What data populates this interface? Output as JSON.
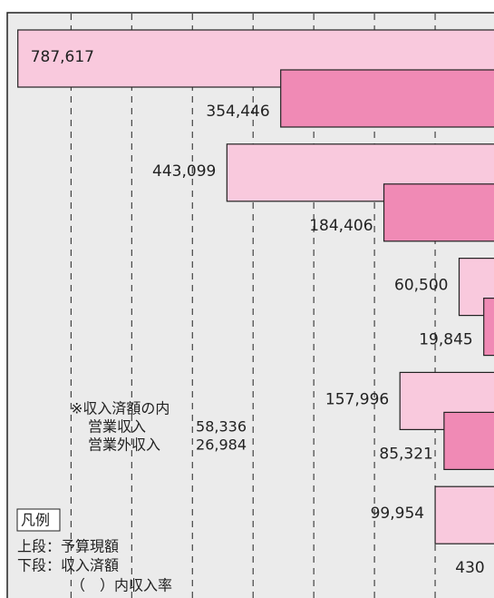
{
  "chart_data": {
    "type": "bar",
    "orientation": "horizontal",
    "categories": [
      null,
      null,
      null,
      null,
      null
    ],
    "series": [
      {
        "name": "上段：予算現額",
        "color": "#f9c9dd",
        "values": [
          787617,
          443099,
          60500,
          157996,
          99954
        ],
        "value_labels": [
          "787,617",
          "443,099",
          "60,500",
          "157,996",
          "99,954"
        ]
      },
      {
        "name": "下段：収入済額",
        "color": "#f08ab5",
        "values": [
          354446,
          184406,
          19845,
          85321,
          430
        ],
        "value_labels": [
          "354,446",
          "184,406",
          "19,845",
          "85,321",
          "430"
        ]
      }
    ],
    "xlim": [
      0,
      800000
    ],
    "xticks": [
      100000,
      200000,
      300000,
      400000,
      500000,
      600000,
      700000
    ],
    "grid": true,
    "legend": {
      "title": "凡例",
      "note": "（　）内収入率"
    },
    "note": {
      "title": "※収入済額の内",
      "items": [
        {
          "label": "営業収入",
          "value": "58,336"
        },
        {
          "label": "営業外収入",
          "value": "26,984"
        }
      ]
    }
  }
}
